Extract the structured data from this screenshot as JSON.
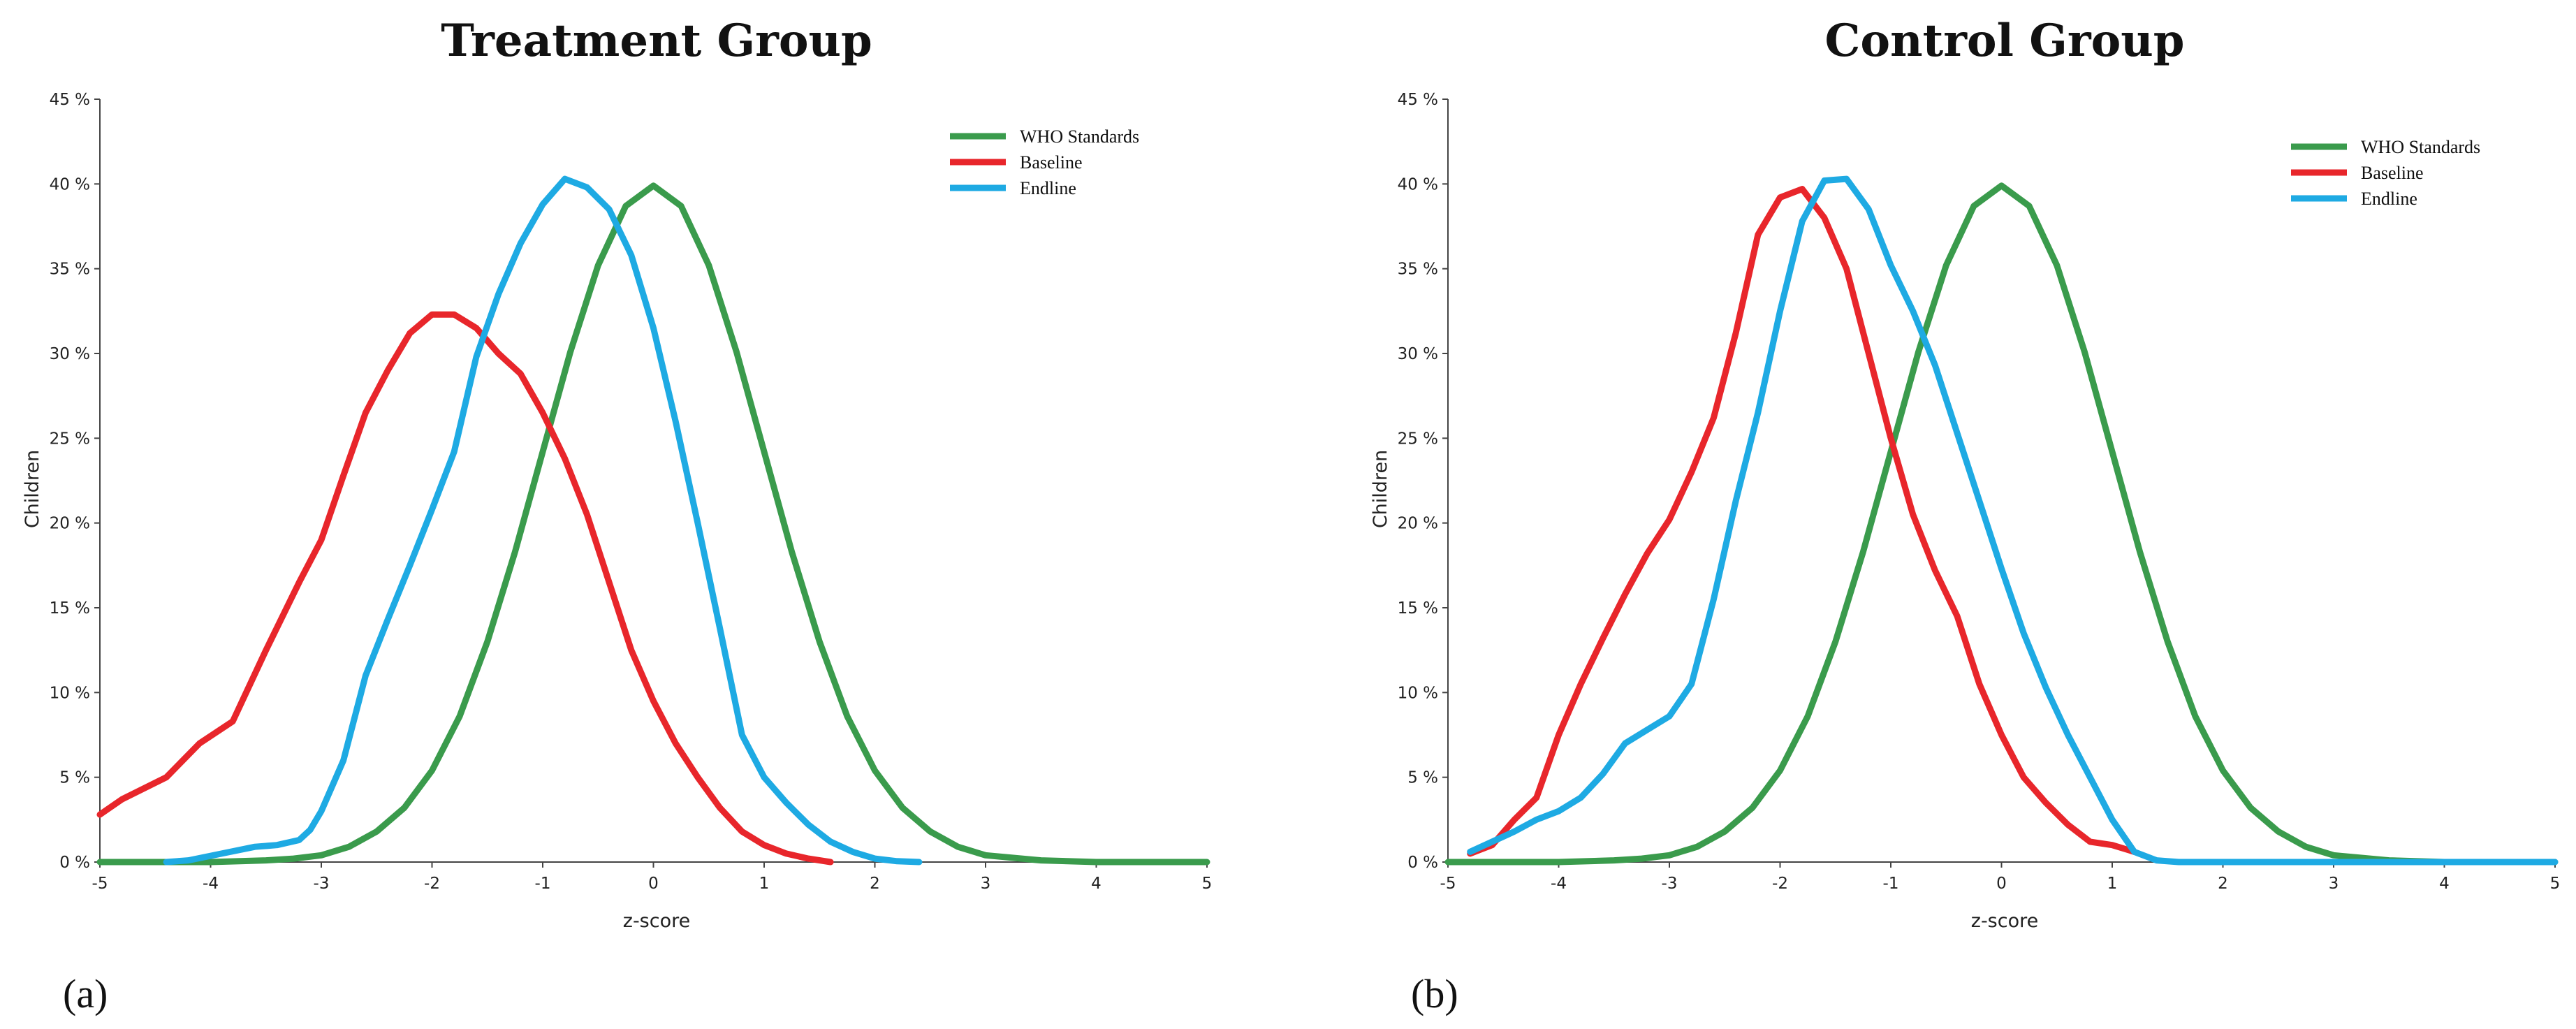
{
  "chart_data": [
    {
      "type": "line",
      "title": "Treatment Group",
      "panel_label": "(a)",
      "xlabel": "z-score",
      "ylabel": "Children",
      "xlim": [
        -5,
        5
      ],
      "ylim": [
        0,
        45
      ],
      "x_ticks": [
        -5,
        -4,
        -3,
        -2,
        -1,
        0,
        1,
        2,
        3,
        4,
        5
      ],
      "y_ticks": [
        0,
        5,
        10,
        15,
        20,
        25,
        30,
        35,
        40,
        45
      ],
      "x_tick_labels": [
        "-5",
        "-4",
        "-3",
        "-2",
        "-1",
        "0",
        "1",
        "2",
        "3",
        "4",
        "5"
      ],
      "y_tick_labels": [
        "0 %",
        "5 %",
        "10 %",
        "15 %",
        "20 %",
        "25 %",
        "30 %",
        "35 %",
        "40 %",
        "45 %"
      ],
      "legend": {
        "position": "top-right"
      },
      "series": [
        {
          "name": "WHO Standards",
          "color": "#3a9b4c",
          "x": [
            -5,
            -4.5,
            -4,
            -3.5,
            -3.25,
            -3,
            -2.75,
            -2.5,
            -2.25,
            -2,
            -1.75,
            -1.5,
            -1.25,
            -1,
            -0.75,
            -0.5,
            -0.25,
            0,
            0.25,
            0.5,
            0.75,
            1,
            1.25,
            1.5,
            1.75,
            2,
            2.25,
            2.5,
            2.75,
            3,
            3.5,
            4,
            4.5,
            5
          ],
          "y": [
            0,
            0,
            0,
            0.1,
            0.2,
            0.4,
            0.9,
            1.8,
            3.2,
            5.4,
            8.6,
            13,
            18.3,
            24.2,
            30.1,
            35.2,
            38.7,
            39.9,
            38.7,
            35.2,
            30.1,
            24.2,
            18.3,
            13,
            8.6,
            5.4,
            3.2,
            1.8,
            0.9,
            0.4,
            0.1,
            0,
            0,
            0
          ]
        },
        {
          "name": "Baseline",
          "color": "#e8262b",
          "x": [
            -5,
            -4.8,
            -4.4,
            -4.1,
            -3.8,
            -3.5,
            -3.2,
            -3,
            -2.8,
            -2.6,
            -2.4,
            -2.2,
            -2,
            -1.8,
            -1.6,
            -1.4,
            -1.2,
            -1,
            -0.8,
            -0.6,
            -0.4,
            -0.2,
            0,
            0.2,
            0.4,
            0.6,
            0.8,
            1,
            1.2,
            1.4,
            1.6
          ],
          "y": [
            2.8,
            3.7,
            5,
            7,
            8.3,
            12.5,
            16.5,
            19,
            22.8,
            26.5,
            29,
            31.2,
            32.3,
            32.3,
            31.5,
            30,
            28.8,
            26.5,
            23.8,
            20.5,
            16.5,
            12.5,
            9.5,
            7,
            5,
            3.2,
            1.8,
            1,
            0.5,
            0.2,
            0
          ]
        },
        {
          "name": "Endline",
          "color": "#1eaae3",
          "x": [
            -4.4,
            -4.2,
            -3.9,
            -3.6,
            -3.4,
            -3.2,
            -3.1,
            -3,
            -2.8,
            -2.6,
            -2.4,
            -2.2,
            -2,
            -1.8,
            -1.6,
            -1.4,
            -1.2,
            -1,
            -0.8,
            -0.6,
            -0.4,
            -0.2,
            0,
            0.2,
            0.4,
            0.6,
            0.8,
            1,
            1.2,
            1.4,
            1.6,
            1.8,
            2,
            2.2,
            2.4
          ],
          "y": [
            0,
            0.1,
            0.5,
            0.9,
            1,
            1.3,
            1.9,
            3,
            6,
            11,
            14.3,
            17.5,
            20.8,
            24.2,
            29.8,
            33.5,
            36.5,
            38.8,
            40.3,
            39.8,
            38.5,
            35.8,
            31.5,
            26,
            20,
            13.8,
            7.5,
            5,
            3.5,
            2.2,
            1.2,
            0.6,
            0.2,
            0.05,
            0
          ]
        }
      ]
    },
    {
      "type": "line",
      "title": "Control Group",
      "panel_label": "(b)",
      "xlabel": "z-score",
      "ylabel": "Children",
      "xlim": [
        -5,
        5
      ],
      "ylim": [
        0,
        45
      ],
      "x_ticks": [
        -5,
        -4,
        -3,
        -2,
        -1,
        0,
        1,
        2,
        3,
        4,
        5
      ],
      "y_ticks": [
        0,
        5,
        10,
        15,
        20,
        25,
        30,
        35,
        40,
        45
      ],
      "x_tick_labels": [
        "-5",
        "-4",
        "-3",
        "-2",
        "-1",
        "0",
        "1",
        "2",
        "3",
        "4",
        "5"
      ],
      "y_tick_labels": [
        "0 %",
        "5 %",
        "10 %",
        "15 %",
        "20 %",
        "25 %",
        "30 %",
        "35 %",
        "40 %",
        "45 %"
      ],
      "legend": {
        "position": "top-right"
      },
      "series": [
        {
          "name": "WHO Standards",
          "color": "#3a9b4c",
          "x": [
            -5,
            -4.5,
            -4,
            -3.5,
            -3.25,
            -3,
            -2.75,
            -2.5,
            -2.25,
            -2,
            -1.75,
            -1.5,
            -1.25,
            -1,
            -0.75,
            -0.5,
            -0.25,
            0,
            0.25,
            0.5,
            0.75,
            1,
            1.25,
            1.5,
            1.75,
            2,
            2.25,
            2.5,
            2.75,
            3,
            3.5,
            4,
            4.5,
            5
          ],
          "y": [
            0,
            0,
            0,
            0.1,
            0.2,
            0.4,
            0.9,
            1.8,
            3.2,
            5.4,
            8.6,
            13,
            18.3,
            24.2,
            30.1,
            35.2,
            38.7,
            39.9,
            38.7,
            35.2,
            30.1,
            24.2,
            18.3,
            13,
            8.6,
            5.4,
            3.2,
            1.8,
            0.9,
            0.4,
            0.1,
            0,
            0,
            0
          ]
        },
        {
          "name": "Baseline",
          "color": "#e8262b",
          "x": [
            -4.8,
            -4.6,
            -4.4,
            -4.2,
            -4,
            -3.8,
            -3.6,
            -3.4,
            -3.2,
            -3,
            -2.8,
            -2.6,
            -2.4,
            -2.2,
            -2,
            -1.8,
            -1.6,
            -1.4,
            -1.2,
            -1,
            -0.8,
            -0.6,
            -0.4,
            -0.2,
            0,
            0.2,
            0.4,
            0.6,
            0.8,
            1,
            1.2
          ],
          "y": [
            0.5,
            1,
            2.5,
            3.8,
            7.5,
            10.5,
            13.2,
            15.8,
            18.2,
            20.2,
            23,
            26.2,
            31.2,
            37,
            39.2,
            39.7,
            38,
            35,
            30,
            25,
            20.5,
            17.2,
            14.5,
            10.5,
            7.5,
            5,
            3.5,
            2.2,
            1.2,
            1,
            0.6
          ]
        },
        {
          "name": "Endline",
          "color": "#1eaae3",
          "x": [
            -4.8,
            -4.6,
            -4.4,
            -4.2,
            -4,
            -3.8,
            -3.6,
            -3.4,
            -3.2,
            -3,
            -2.8,
            -2.6,
            -2.4,
            -2.2,
            -2,
            -1.8,
            -1.6,
            -1.4,
            -1.2,
            -1,
            -0.8,
            -0.6,
            -0.4,
            -0.2,
            0,
            0.2,
            0.4,
            0.6,
            0.8,
            1,
            1.2,
            1.4,
            1.6,
            2,
            3,
            4,
            5
          ],
          "y": [
            0.6,
            1.2,
            1.8,
            2.5,
            3,
            3.8,
            5.2,
            7,
            7.8,
            8.6,
            10.5,
            15.5,
            21.3,
            26.5,
            32.5,
            37.8,
            40.2,
            40.3,
            38.5,
            35.2,
            32.5,
            29.3,
            25.3,
            21.3,
            17.3,
            13.5,
            10.3,
            7.5,
            5,
            2.5,
            0.6,
            0.1,
            0,
            0,
            0,
            0,
            0
          ]
        }
      ]
    }
  ]
}
